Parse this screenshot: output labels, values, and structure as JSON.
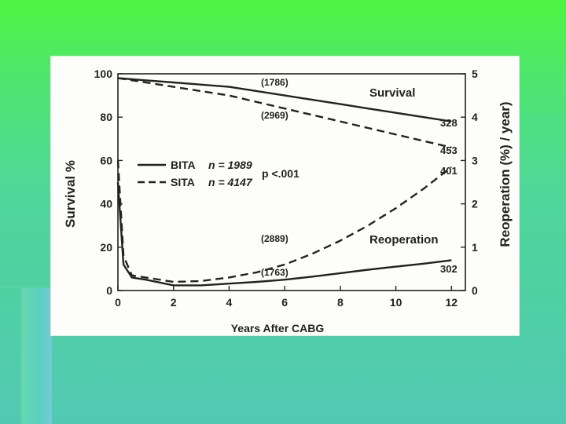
{
  "colors": {
    "line": "#222222",
    "paper": "#fdfdfb"
  },
  "chart_data": {
    "type": "line",
    "title": "",
    "xlabel": "Years After CABG",
    "ylabel": "Survival %",
    "y2label": "Reoperation (%) / year)",
    "xlim": [
      0,
      12.5
    ],
    "ylim": [
      0,
      100
    ],
    "y2lim": [
      0,
      5
    ],
    "xticks": [
      "0",
      "2",
      "4",
      "6",
      "8",
      "10",
      "12"
    ],
    "yticks": [
      "0",
      "20",
      "40",
      "60",
      "80",
      "100"
    ],
    "y2ticks": [
      "0",
      "1",
      "2",
      "3",
      "4",
      "5"
    ],
    "legend": {
      "placement": "center-left",
      "entries": [
        {
          "label": "BITA",
          "n_label": "n = 1989",
          "style": "solid"
        },
        {
          "label": "SITA",
          "n_label": "n = 4147",
          "style": "dashed"
        }
      ]
    },
    "annotations": {
      "pvalue": "p <.001",
      "survival_label": "Survival",
      "reoperation_label": "Reoperation",
      "n1786": "(1786)",
      "n2969": "(2969)",
      "n2889": "(2889)",
      "n1763": "(1763)",
      "end328": "328",
      "end453": "453",
      "end401": "401",
      "end302": "302"
    },
    "series": [
      {
        "name": "Survival BITA",
        "axis": "left",
        "style": "solid",
        "x": [
          0,
          1,
          2,
          3,
          4,
          5,
          6,
          7,
          8,
          9,
          10,
          11,
          12
        ],
        "values": [
          98,
          97,
          96,
          95,
          94,
          92,
          90,
          88,
          86,
          84,
          82,
          80,
          78
        ]
      },
      {
        "name": "Survival SITA",
        "axis": "left",
        "style": "dashed",
        "x": [
          0,
          1,
          2,
          3,
          4,
          5,
          6,
          7,
          8,
          9,
          10,
          11,
          12
        ],
        "values": [
          98,
          96,
          94,
          92,
          90,
          87,
          84,
          81,
          78,
          75,
          72,
          69,
          66
        ]
      },
      {
        "name": "Reoperation SITA",
        "axis": "right",
        "style": "dashed",
        "x": [
          0,
          0.2,
          0.5,
          1,
          2,
          3,
          4,
          5,
          6,
          7,
          8,
          9,
          10,
          11,
          12
        ],
        "values": [
          3.0,
          0.8,
          0.35,
          0.3,
          0.2,
          0.22,
          0.3,
          0.42,
          0.6,
          0.85,
          1.15,
          1.5,
          1.9,
          2.35,
          2.85
        ]
      },
      {
        "name": "Reoperation BITA",
        "axis": "right",
        "style": "solid",
        "x": [
          0,
          0.2,
          0.5,
          1,
          2,
          3,
          4,
          5,
          6,
          7,
          8,
          9,
          10,
          11,
          12
        ],
        "values": [
          2.5,
          0.6,
          0.3,
          0.25,
          0.12,
          0.12,
          0.16,
          0.2,
          0.25,
          0.32,
          0.4,
          0.48,
          0.55,
          0.62,
          0.7
        ]
      }
    ]
  }
}
